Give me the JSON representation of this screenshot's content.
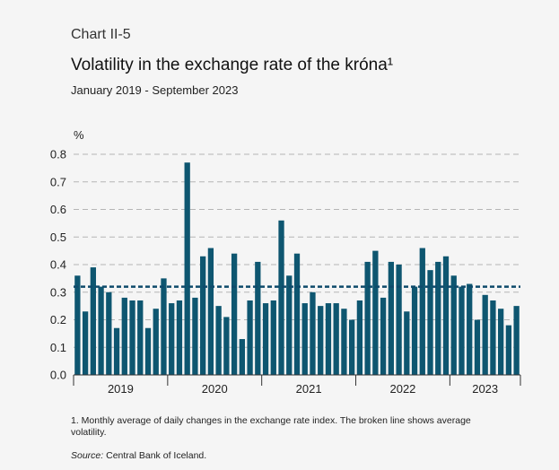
{
  "header": {
    "chart_label": "Chart II-5",
    "title": "Volatility in the exchange rate of the króna¹",
    "subtitle": "January 2019 - September 2023"
  },
  "footer": {
    "footnote": "1. Monthly average of daily changes in the exchange rate index. The broken line shows average volatility.",
    "source_label": "Source:",
    "source_text": "Central Bank of Iceland."
  },
  "colors": {
    "bar": "#0e5670",
    "average_line": "#0e4a6b",
    "grid": "#b5b5b5",
    "background": "#f5f5f5"
  },
  "chart_data": {
    "type": "bar",
    "ylabel": "%",
    "ylim": [
      0,
      0.8
    ],
    "yticks": [
      0.0,
      0.1,
      0.2,
      0.3,
      0.4,
      0.5,
      0.6,
      0.7,
      0.8
    ],
    "ytick_labels": [
      "0.0",
      "0.1",
      "0.2",
      "0.3",
      "0.4",
      "0.5",
      "0.6",
      "0.7",
      "0.8"
    ],
    "grid": "horizontal dashed",
    "year_labels": [
      "2019",
      "2020",
      "2021",
      "2022",
      "2023"
    ],
    "categories": [
      "2019-01",
      "2019-02",
      "2019-03",
      "2019-04",
      "2019-05",
      "2019-06",
      "2019-07",
      "2019-08",
      "2019-09",
      "2019-10",
      "2019-11",
      "2019-12",
      "2020-01",
      "2020-02",
      "2020-03",
      "2020-04",
      "2020-05",
      "2020-06",
      "2020-07",
      "2020-08",
      "2020-09",
      "2020-10",
      "2020-11",
      "2020-12",
      "2021-01",
      "2021-02",
      "2021-03",
      "2021-04",
      "2021-05",
      "2021-06",
      "2021-07",
      "2021-08",
      "2021-09",
      "2021-10",
      "2021-11",
      "2021-12",
      "2022-01",
      "2022-02",
      "2022-03",
      "2022-04",
      "2022-05",
      "2022-06",
      "2022-07",
      "2022-08",
      "2022-09",
      "2022-10",
      "2022-11",
      "2022-12",
      "2023-01",
      "2023-02",
      "2023-03",
      "2023-04",
      "2023-05",
      "2023-06",
      "2023-07",
      "2023-08",
      "2023-09"
    ],
    "values": [
      0.36,
      0.23,
      0.39,
      0.32,
      0.3,
      0.17,
      0.28,
      0.27,
      0.27,
      0.17,
      0.24,
      0.35,
      0.26,
      0.27,
      0.77,
      0.28,
      0.43,
      0.46,
      0.25,
      0.21,
      0.44,
      0.13,
      0.27,
      0.41,
      0.26,
      0.27,
      0.56,
      0.36,
      0.44,
      0.26,
      0.3,
      0.25,
      0.26,
      0.26,
      0.24,
      0.2,
      0.27,
      0.41,
      0.45,
      0.28,
      0.41,
      0.4,
      0.23,
      0.32,
      0.46,
      0.38,
      0.41,
      0.43,
      0.36,
      0.32,
      0.33,
      0.2,
      0.29,
      0.27,
      0.24,
      0.18,
      0.25
    ],
    "average_line": 0.32
  }
}
